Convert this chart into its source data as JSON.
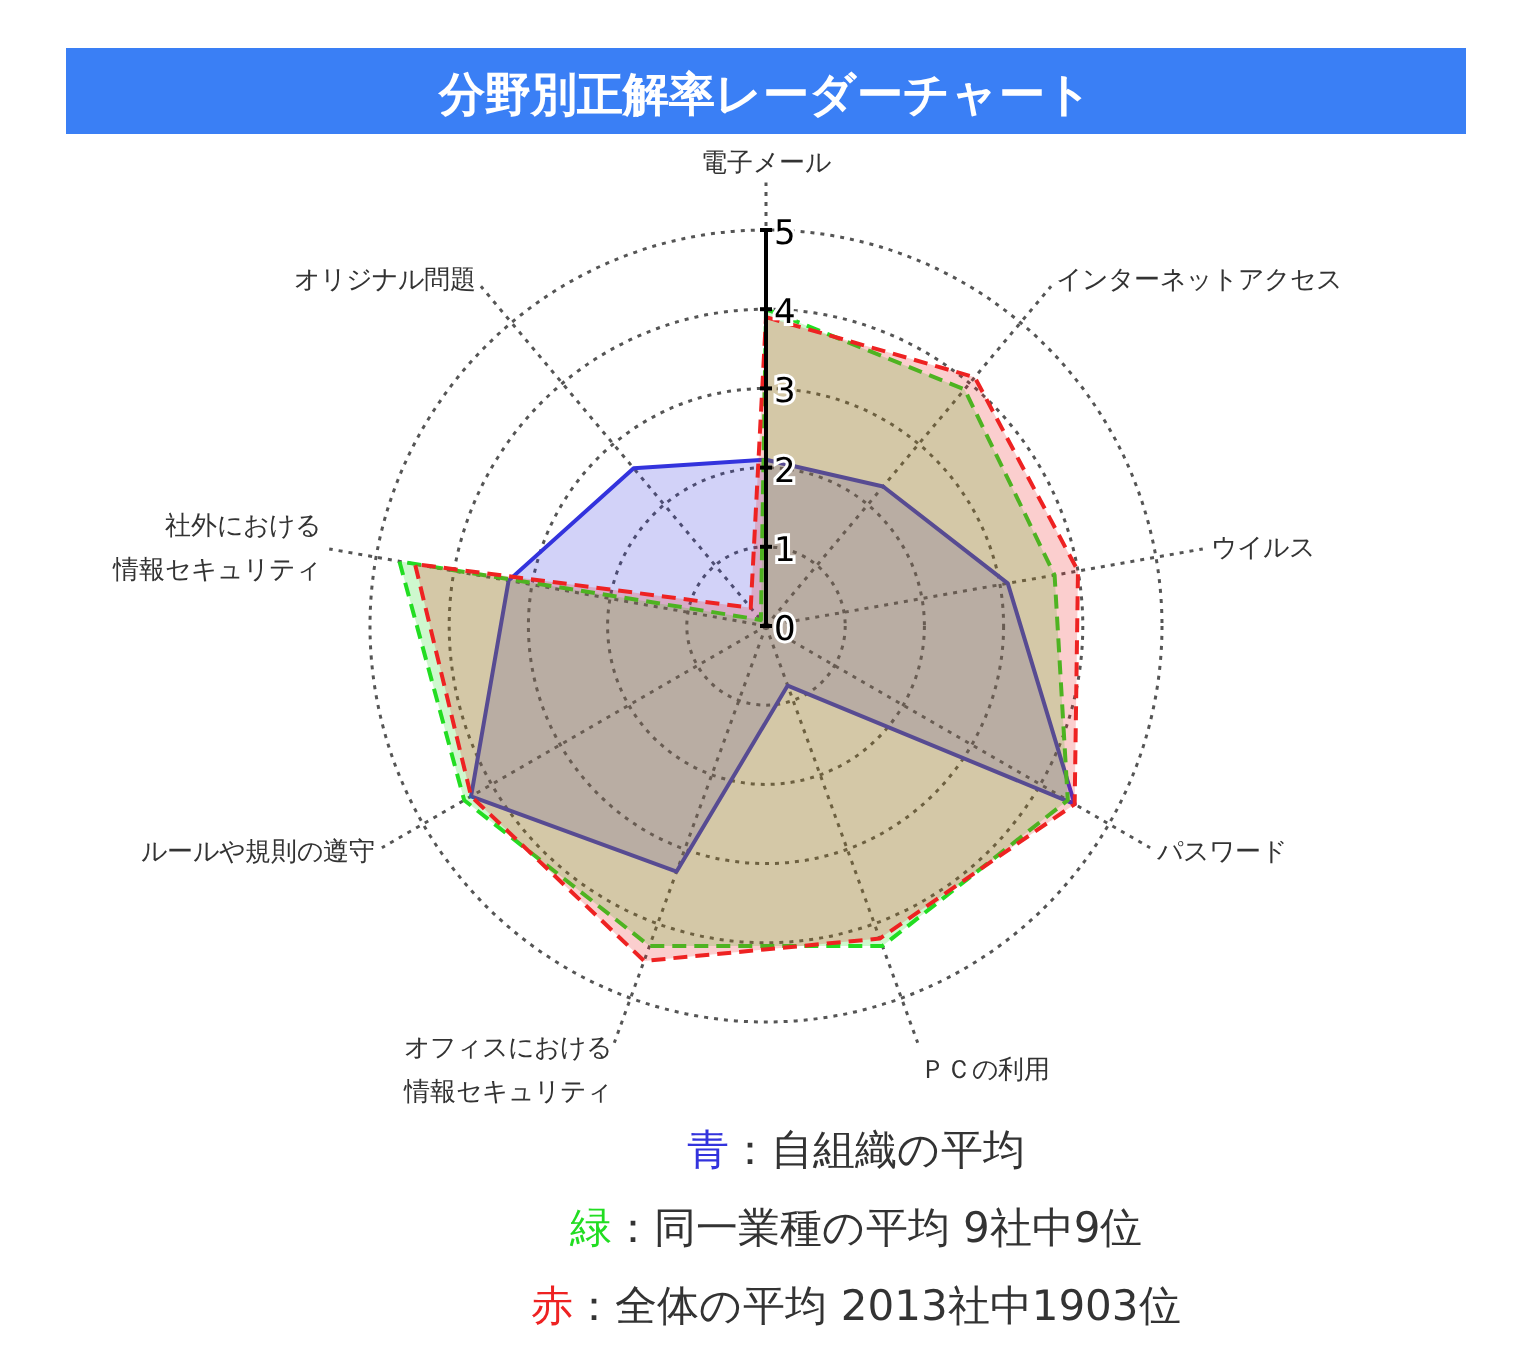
{
  "chart_data": {
    "type": "radar",
    "title": "分野別正解率レーダーチャート",
    "categories": [
      "電子メール",
      "インターネットアクセス",
      "ウイルス",
      "パスワード",
      "ＰＣの利用",
      "オフィスにおける情報セキュリティ",
      "ルールや規則の遵守",
      "社外における情報セキュリティ",
      "オリジナル問題"
    ],
    "ylim": [
      0,
      5
    ],
    "yticks": [
      0,
      1,
      2,
      3,
      4,
      5
    ],
    "grid": true,
    "legend": "bottom",
    "marker": "none",
    "series": [
      {
        "name": "青：自組織の平均",
        "color": "#3333dd",
        "line_style": "solid",
        "values": [
          2.1,
          2.3,
          3.1,
          4.5,
          0.8,
          3.3,
          4.3,
          3.3,
          2.6
        ]
      },
      {
        "name": "緑：同一業種の平均 9社中9位",
        "color": "#22dd22",
        "line_style": "dashed",
        "values": [
          4.0,
          3.9,
          3.7,
          4.4,
          4.3,
          4.3,
          4.4,
          4.7,
          0.1
        ]
      },
      {
        "name": "赤：全体の平均 2013社中1903位",
        "color": "#ee2222",
        "line_style": "dashed",
        "values": [
          3.9,
          4.1,
          4.0,
          4.5,
          4.2,
          4.5,
          4.3,
          4.5,
          0.3
        ]
      }
    ]
  }
}
